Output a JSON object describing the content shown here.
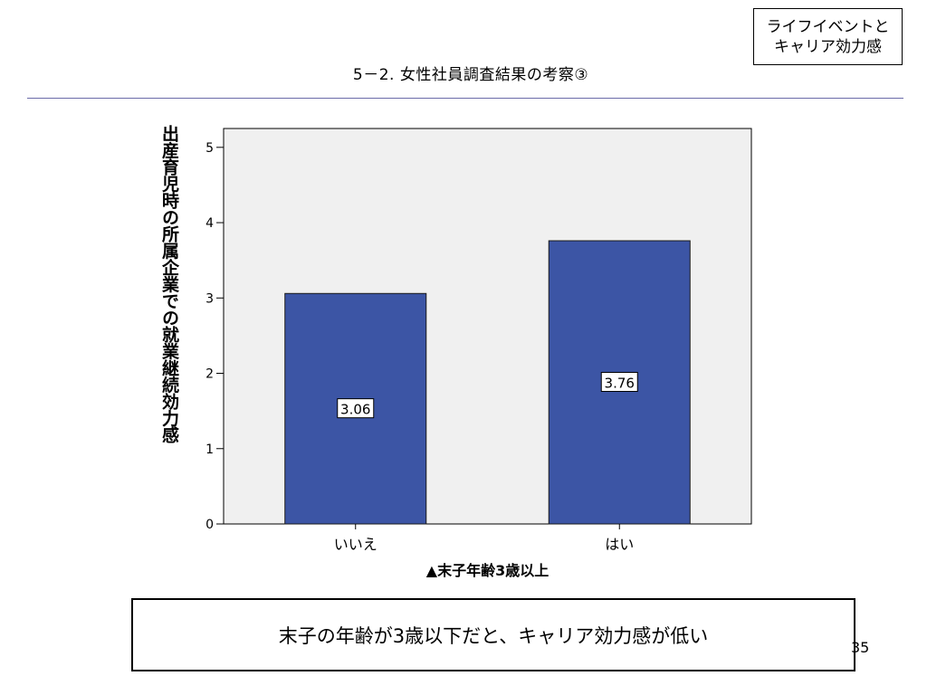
{
  "tag": {
    "line1": "ライフイベントと",
    "line2": "キャリア効力感"
  },
  "slide_title": "5－2. 女性社員調査結果の考察③",
  "conclusion": "末子の年齢が3歳以下だと、キャリア効力感が低い",
  "page_number": "35",
  "colors": {
    "bar": "#3c55a5",
    "plot_bg": "#f0f0f0",
    "rule": "#6b6ba8"
  },
  "chart_data": {
    "type": "bar",
    "categories": [
      "いいえ",
      "はい"
    ],
    "values": [
      3.06,
      3.76
    ],
    "data_labels": [
      "3.06",
      "3.76"
    ],
    "xlabel": "▲末子年齢3歳以上",
    "ylabel": "出産育児時の所属企業での就業継続効力感",
    "ylim": [
      0,
      5.25
    ],
    "yticks": [
      0,
      1,
      2,
      3,
      4,
      5
    ],
    "grid": false,
    "legend": "none"
  }
}
